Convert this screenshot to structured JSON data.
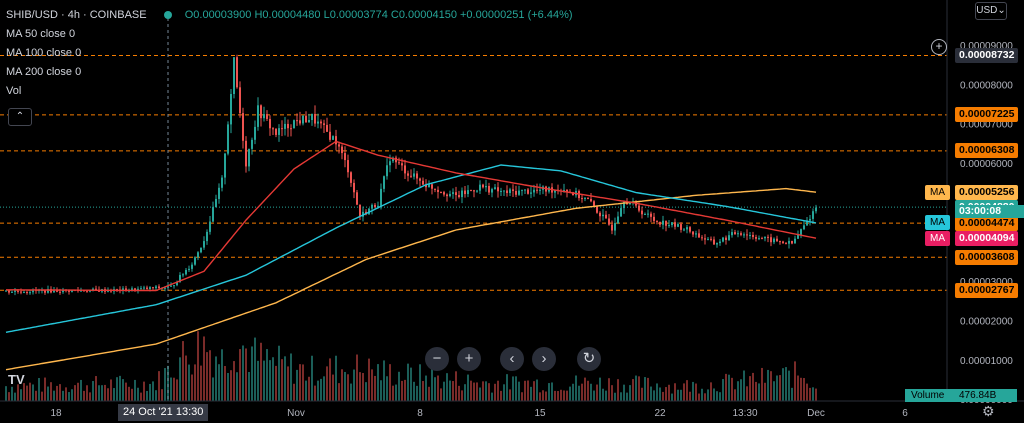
{
  "header": {
    "symbol": "SHIB/USD · 4h · COINBASE",
    "o": "O0.00003900",
    "h": "H0.00004480",
    "l": "L0.00003774",
    "c": "C0.00004150",
    "change": "+0.00000251 (+6.44%)",
    "indicators": [
      "MA 50 close 0",
      "MA 100 close 0",
      "MA 200 close 0",
      "Vol"
    ],
    "collapse_icon": "chevron-up-icon"
  },
  "currency_button": "USD",
  "y_axis": {
    "ticks": [
      "0.00009000",
      "0.00008000",
      "0.00007000",
      "0.00006000",
      "0.00005000",
      "0.00004000",
      "0.00003000",
      "0.00002000",
      "0.00001000",
      "0.00000000"
    ]
  },
  "x_axis": {
    "ticks": [
      "18",
      "24 Oct '21",
      "13:30",
      "Nov",
      "8",
      "15",
      "22",
      "13:30",
      "Dec",
      "6"
    ],
    "crosshair_label": "24 Oct '21    13:30"
  },
  "price_labels": [
    {
      "text": "0.00008732",
      "color": "#ffffff",
      "bg": "#2a2e39",
      "value": 8.732e-05
    },
    {
      "text": "0.00007225",
      "color": "#000000",
      "bg": "#f57c00",
      "value": 7.225e-05
    },
    {
      "text": "0.00006308",
      "color": "#000000",
      "bg": "#f57c00",
      "value": 6.308e-05
    },
    {
      "text": "0.00005256",
      "color": "#000000",
      "bg": "#ffb74d",
      "value": 5.256e-05
    },
    {
      "text": "0.00004880",
      "color": "#ffffff",
      "bg": "#26a69a",
      "value": 4.88e-05
    },
    {
      "text": "0.00004478",
      "color": "#000000",
      "bg": "#26c6da",
      "value": 4.478e-05
    },
    {
      "text": "0.00004474",
      "color": "#000000",
      "bg": "#f57c00",
      "value": 4.474e-05
    },
    {
      "text": "0.00004094",
      "color": "#ffffff",
      "bg": "#e91e63",
      "value": 4.094e-05
    },
    {
      "text": "0.00003608",
      "color": "#000000",
      "bg": "#f57c00",
      "value": 3.608e-05
    },
    {
      "text": "0.00002767",
      "color": "#000000",
      "bg": "#f57c00",
      "value": 2.767e-05
    }
  ],
  "ma_labels": [
    {
      "text": "MA",
      "color": "#000000",
      "bg": "#ffb74d",
      "value": 5.256e-05
    },
    {
      "text": "MA",
      "color": "#000000",
      "bg": "#26c6da",
      "value": 4.478e-05
    },
    {
      "text": "MA",
      "color": "#ffffff",
      "bg": "#e91e63",
      "value": 4.094e-05
    }
  ],
  "countdown": "03:00:08",
  "volume": {
    "label": "Volume",
    "value": "476.84B"
  },
  "toolbar": [
    "zoom-out-icon",
    "zoom-in-icon",
    "scroll-left-icon",
    "scroll-right-icon",
    "reset-icon"
  ],
  "colors": {
    "bull": "#26a69a",
    "bear": "#ef5350",
    "ma50": "#e53935",
    "ma100": "#26c6da",
    "ma200": "#ffb74d",
    "hline": "#f57c00"
  },
  "chart_data": {
    "type": "candlestick",
    "title": "",
    "ylabel": "",
    "ylim": [
      0,
      9e-05
    ],
    "horizontal_levels": [
      8.732e-05,
      7.225e-05,
      6.308e-05,
      4.474e-05,
      3.608e-05,
      2.767e-05
    ],
    "price_anchors": [
      {
        "x": 0,
        "close": 2.74e-05
      },
      {
        "x": 20,
        "close": 2.76e-05
      },
      {
        "x": 40,
        "close": 2.77e-05
      },
      {
        "x": 55,
        "close": 2.85e-05
      },
      {
        "x": 62,
        "close": 3.45e-05
      },
      {
        "x": 66,
        "close": 4.05e-05
      },
      {
        "x": 72,
        "close": 5.55e-05
      },
      {
        "x": 76,
        "close": 8.55e-05
      },
      {
        "x": 80,
        "close": 6e-05
      },
      {
        "x": 84,
        "close": 7.35e-05
      },
      {
        "x": 90,
        "close": 6.75e-05
      },
      {
        "x": 96,
        "close": 7.05e-05
      },
      {
        "x": 102,
        "close": 7.15e-05
      },
      {
        "x": 110,
        "close": 6.55e-05
      },
      {
        "x": 114,
        "close": 5.85e-05
      },
      {
        "x": 118,
        "close": 4.65e-05
      },
      {
        "x": 124,
        "close": 5e-05
      },
      {
        "x": 128,
        "close": 6.15e-05
      },
      {
        "x": 134,
        "close": 5.75e-05
      },
      {
        "x": 140,
        "close": 5.45e-05
      },
      {
        "x": 150,
        "close": 5.15e-05
      },
      {
        "x": 158,
        "close": 5.4e-05
      },
      {
        "x": 166,
        "close": 5.25e-05
      },
      {
        "x": 176,
        "close": 5.3e-05
      },
      {
        "x": 186,
        "close": 5.35e-05
      },
      {
        "x": 194,
        "close": 5.05e-05
      },
      {
        "x": 202,
        "close": 4.35e-05
      },
      {
        "x": 206,
        "close": 5.1e-05
      },
      {
        "x": 216,
        "close": 4.55e-05
      },
      {
        "x": 226,
        "close": 4.35e-05
      },
      {
        "x": 236,
        "close": 3.95e-05
      },
      {
        "x": 244,
        "close": 4.25e-05
      },
      {
        "x": 254,
        "close": 4.05e-05
      },
      {
        "x": 262,
        "close": 3.95e-05
      },
      {
        "x": 266,
        "close": 4.4e-05
      },
      {
        "x": 270,
        "close": 4.88e-05
      }
    ],
    "ma50_anchors": [
      {
        "x": 0,
        "v": 2.78e-05
      },
      {
        "x": 50,
        "v": 2.76e-05
      },
      {
        "x": 66,
        "v": 3.25e-05
      },
      {
        "x": 80,
        "v": 4.55e-05
      },
      {
        "x": 96,
        "v": 5.85e-05
      },
      {
        "x": 110,
        "v": 6.55e-05
      },
      {
        "x": 124,
        "v": 6.2e-05
      },
      {
        "x": 150,
        "v": 5.75e-05
      },
      {
        "x": 180,
        "v": 5.35e-05
      },
      {
        "x": 210,
        "v": 4.98e-05
      },
      {
        "x": 240,
        "v": 4.55e-05
      },
      {
        "x": 270,
        "v": 4.09e-05
      }
    ],
    "ma100_anchors": [
      {
        "x": 0,
        "v": 1.7e-05
      },
      {
        "x": 50,
        "v": 2.4e-05
      },
      {
        "x": 80,
        "v": 3.15e-05
      },
      {
        "x": 110,
        "v": 4.35e-05
      },
      {
        "x": 140,
        "v": 5.45e-05
      },
      {
        "x": 165,
        "v": 5.95e-05
      },
      {
        "x": 185,
        "v": 5.8e-05
      },
      {
        "x": 210,
        "v": 5.25e-05
      },
      {
        "x": 240,
        "v": 4.9e-05
      },
      {
        "x": 270,
        "v": 4.48e-05
      }
    ],
    "ma200_anchors": [
      {
        "x": 0,
        "v": 7.5e-06
      },
      {
        "x": 50,
        "v": 1.4e-05
      },
      {
        "x": 90,
        "v": 2.45e-05
      },
      {
        "x": 120,
        "v": 3.55e-05
      },
      {
        "x": 150,
        "v": 4.3e-05
      },
      {
        "x": 190,
        "v": 4.85e-05
      },
      {
        "x": 230,
        "v": 5.18e-05
      },
      {
        "x": 260,
        "v": 5.35e-05
      },
      {
        "x": 270,
        "v": 5.26e-05
      }
    ],
    "volume_anchors": [
      {
        "x": 0,
        "v": 0.25
      },
      {
        "x": 50,
        "v": 0.3
      },
      {
        "x": 58,
        "v": 0.7
      },
      {
        "x": 66,
        "v": 0.95
      },
      {
        "x": 72,
        "v": 0.7
      },
      {
        "x": 76,
        "v": 1.0
      },
      {
        "x": 84,
        "v": 0.7
      },
      {
        "x": 100,
        "v": 0.5
      },
      {
        "x": 116,
        "v": 0.55
      },
      {
        "x": 130,
        "v": 0.45
      },
      {
        "x": 160,
        "v": 0.3
      },
      {
        "x": 200,
        "v": 0.3
      },
      {
        "x": 230,
        "v": 0.25
      },
      {
        "x": 266,
        "v": 0.45
      },
      {
        "x": 270,
        "v": 0.25
      }
    ]
  }
}
